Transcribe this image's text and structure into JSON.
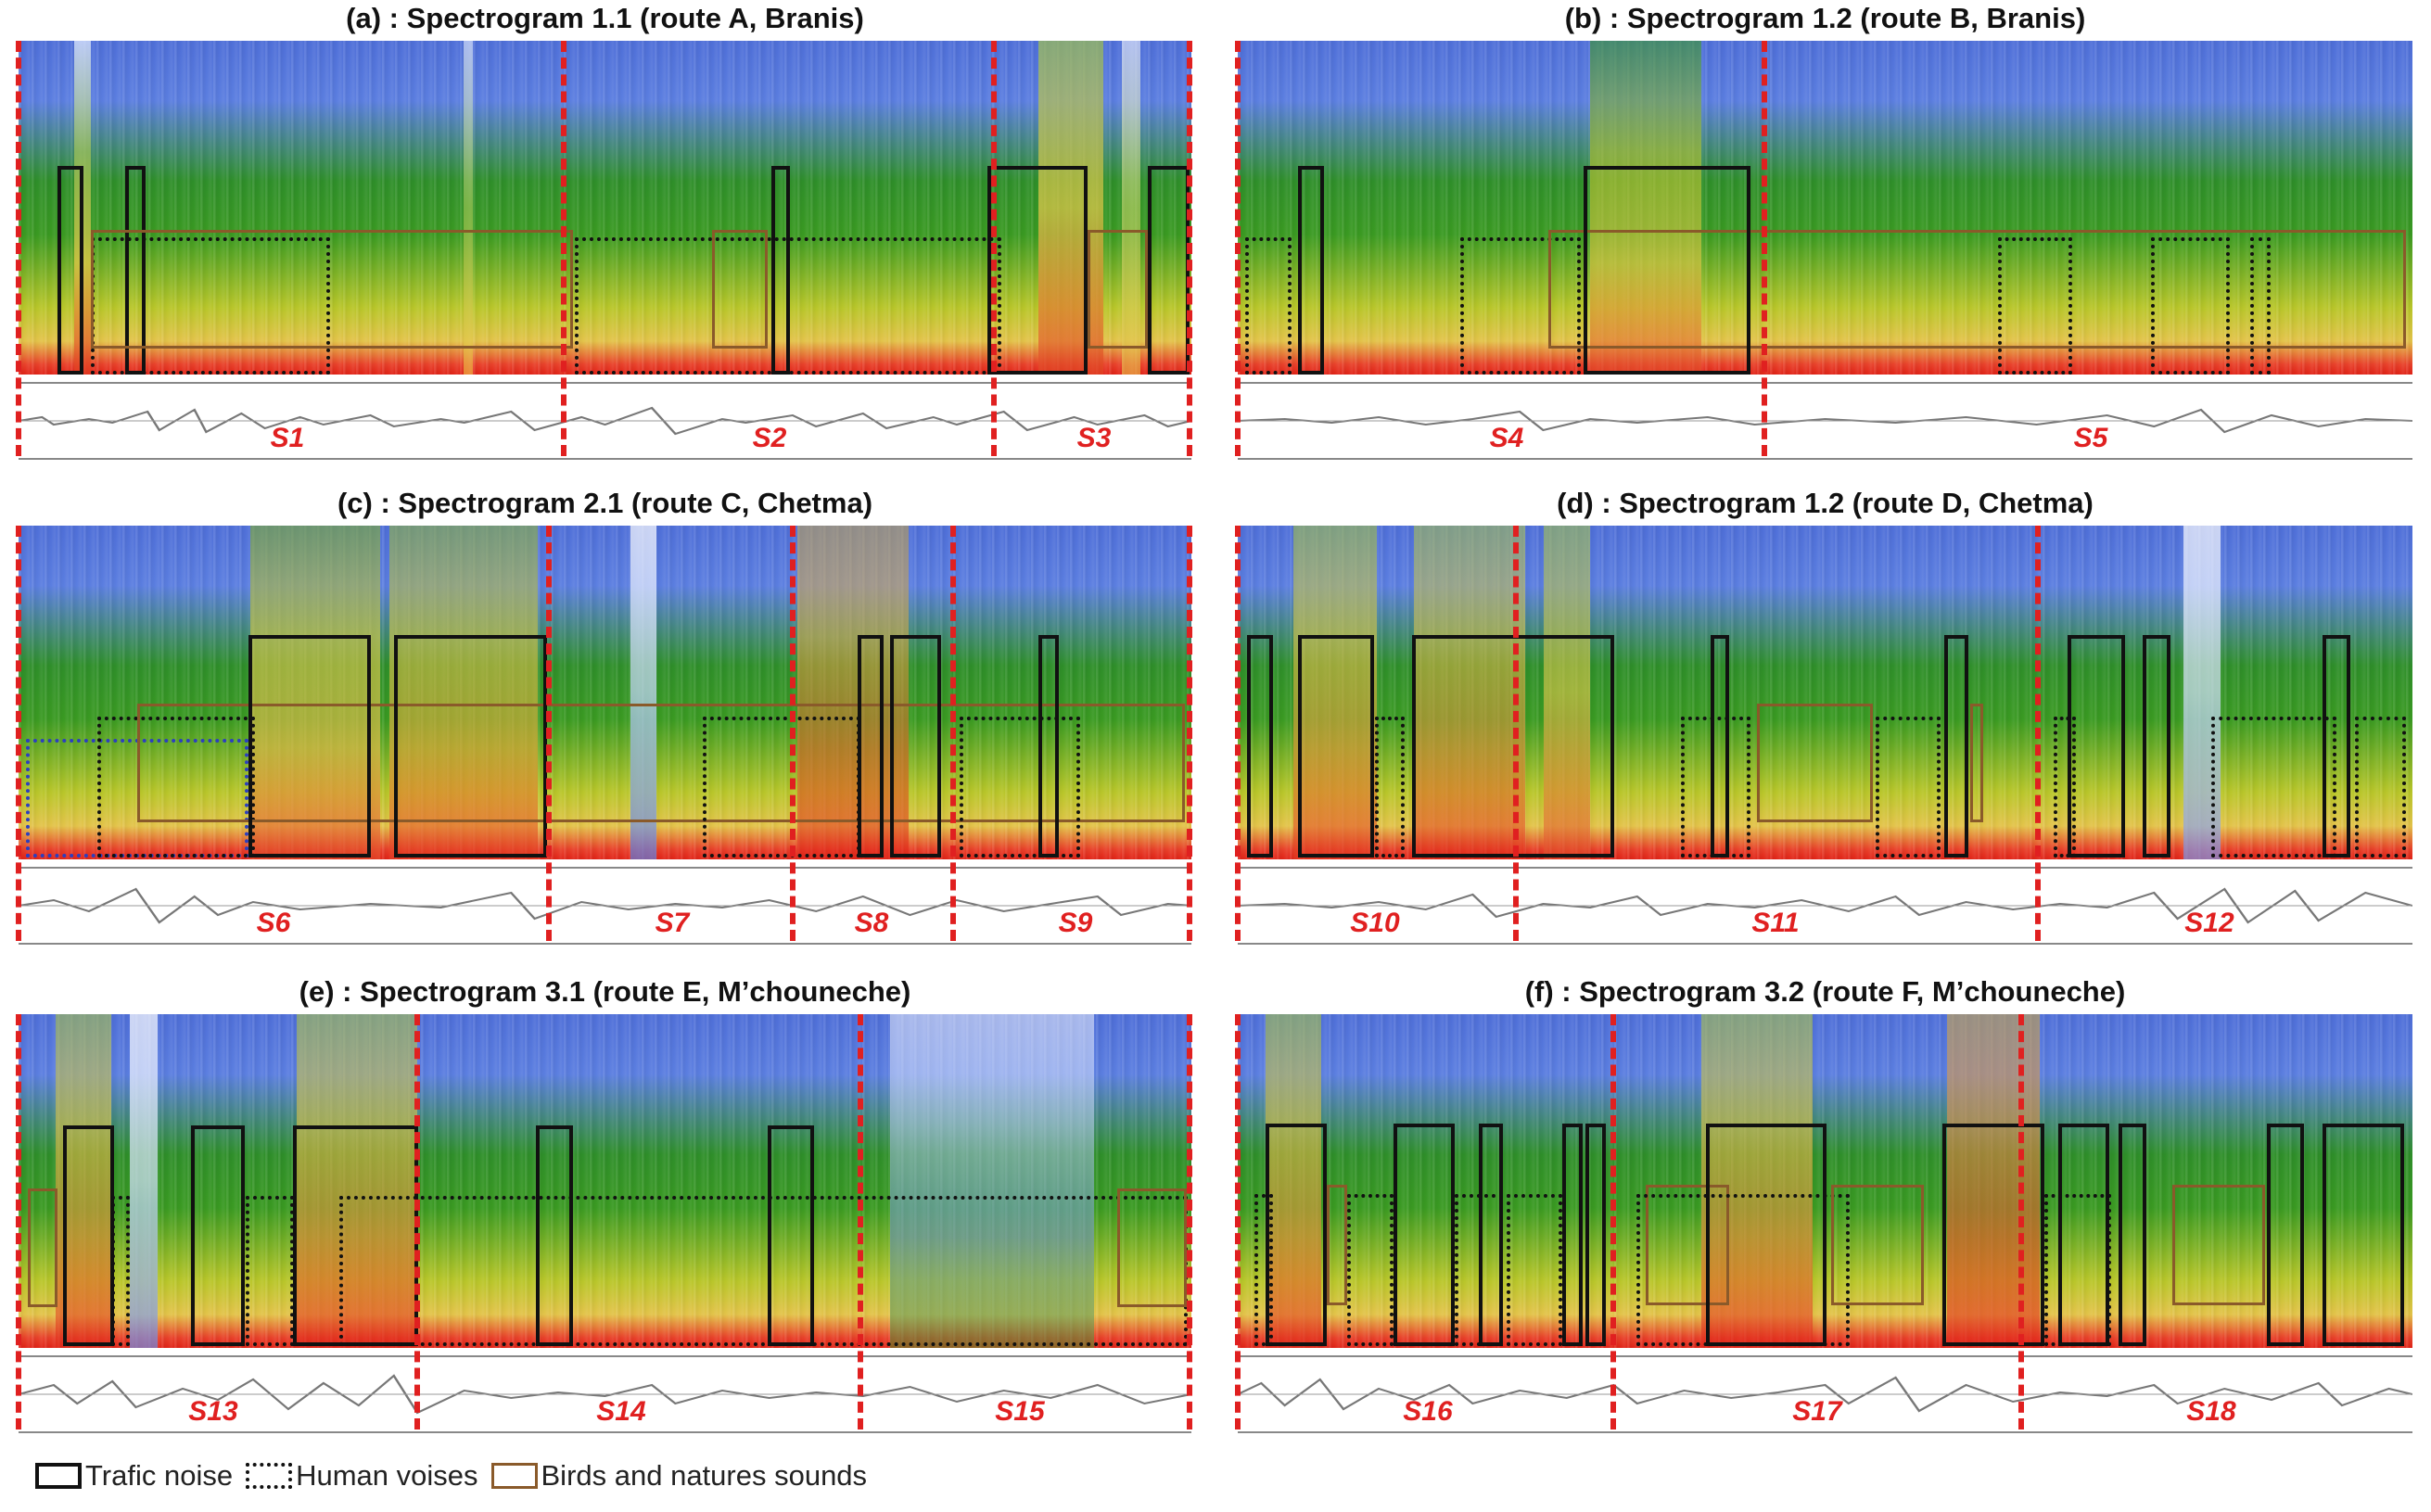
{
  "panels": [
    {
      "id": "a",
      "title": "(a) : Spectrogram 1.1 (route A, Branis)",
      "segments": [
        "S1",
        "S2",
        "S3"
      ]
    },
    {
      "id": "b",
      "title": "(b) : Spectrogram 1.2 (route B, Branis)",
      "segments": [
        "S4",
        "S5"
      ]
    },
    {
      "id": "c",
      "title": "(c) : Spectrogram 2.1 (route C, Chetma)",
      "segments": [
        "S6",
        "S7",
        "S8",
        "S9"
      ]
    },
    {
      "id": "d",
      "title": "(d) : Spectrogram 1.2 (route D, Chetma)",
      "segments": [
        "S10",
        "S11",
        "S12"
      ]
    },
    {
      "id": "e",
      "title": "(e) : Spectrogram 3.1 (route E, M’chouneche)",
      "segments": [
        "S13",
        "S14",
        "S15"
      ]
    },
    {
      "id": "f",
      "title": "(f) : Spectrogram 3.2 (route F, M’chouneche)",
      "segments": [
        "S16",
        "S17",
        "S18"
      ]
    }
  ],
  "legend": {
    "traffic": "Trafic noise",
    "human": "Human voises",
    "birds": "Birds and natures sounds"
  },
  "colors": {
    "segment_divider": "#e02020",
    "traffic_box": "#111111",
    "human_box": "#111111",
    "birds_box": "#8a5a2a"
  }
}
